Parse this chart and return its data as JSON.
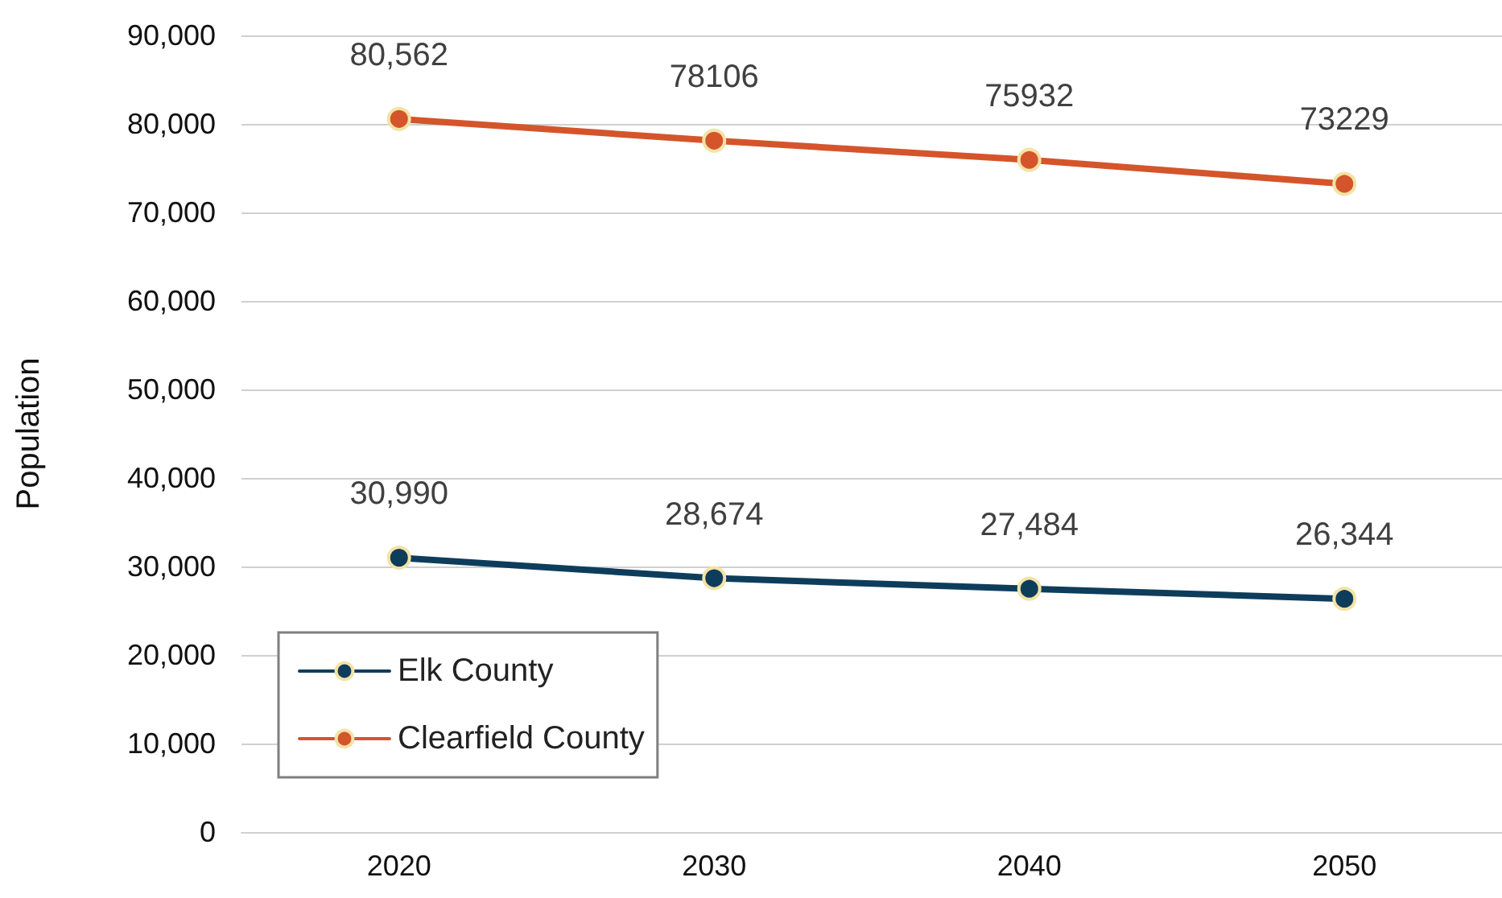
{
  "chart_data": {
    "type": "line",
    "ylabel": "Population",
    "categories": [
      "2020",
      "2030",
      "2040",
      "2050"
    ],
    "series": [
      {
        "name": "Elk County",
        "color": "#0e3d5c",
        "values": [
          30990,
          28674,
          27484,
          26344
        ],
        "value_labels": [
          "30,990",
          "28,674",
          "27,484",
          "26,344"
        ]
      },
      {
        "name": "Clearfield County",
        "color": "#d4552b",
        "values": [
          80562,
          78106,
          75932,
          73229
        ],
        "value_labels": [
          "80,562",
          "78106",
          "75932",
          "73229"
        ]
      }
    ],
    "ylim": [
      0,
      90000
    ],
    "yticks": [
      0,
      {
        "value": 10000,
        "label": "10,000"
      },
      {
        "value": 20000,
        "label": "20,000"
      },
      {
        "value": 30000,
        "label": "30,000"
      },
      {
        "value": 40000,
        "label": "40,000"
      },
      {
        "value": 50000,
        "label": "50,000"
      },
      {
        "value": 60000,
        "label": "60,000"
      },
      {
        "value": 70000,
        "label": "70,000"
      },
      {
        "value": 80000,
        "label": "80,000"
      },
      {
        "value": 90000,
        "label": "90,000"
      }
    ],
    "grid": "y",
    "legend": "bottom left",
    "marker": "circle",
    "line_style": "solid"
  }
}
